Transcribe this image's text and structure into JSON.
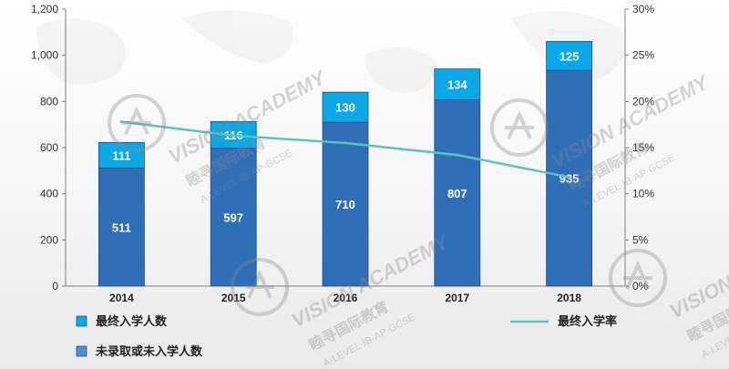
{
  "chart_data": {
    "type": "bar",
    "stacked": true,
    "categories": [
      "2014",
      "2015",
      "2016",
      "2017",
      "2018"
    ],
    "series": [
      {
        "name": "未录取或未入学人数",
        "values": [
          511,
          597,
          710,
          807,
          935
        ],
        "color": "#2e6fb8"
      },
      {
        "name": "最终入学人数",
        "values": [
          111,
          116,
          130,
          134,
          125
        ],
        "color": "#0aa8e6"
      }
    ],
    "line_series": {
      "name": "最终入学率",
      "values": [
        17.8,
        16.3,
        15.5,
        14.2,
        11.8
      ],
      "color": "#5ec4b8",
      "axis": "right"
    },
    "ylim": [
      0,
      1200
    ],
    "y_ticks": [
      "0",
      "200",
      "400",
      "600",
      "800",
      "1,000",
      "1,200"
    ],
    "y2lim": [
      0,
      30
    ],
    "y2_ticks": [
      "0%",
      "5%",
      "10%",
      "15%",
      "20%",
      "25%",
      "30%"
    ],
    "grid": false,
    "legend": "bottom"
  },
  "watermark": {
    "brand": "VISION ACADEMY",
    "cn": "睦寻国际教育",
    "sub": "A·LEVEL·IB·AP·GCSE"
  }
}
